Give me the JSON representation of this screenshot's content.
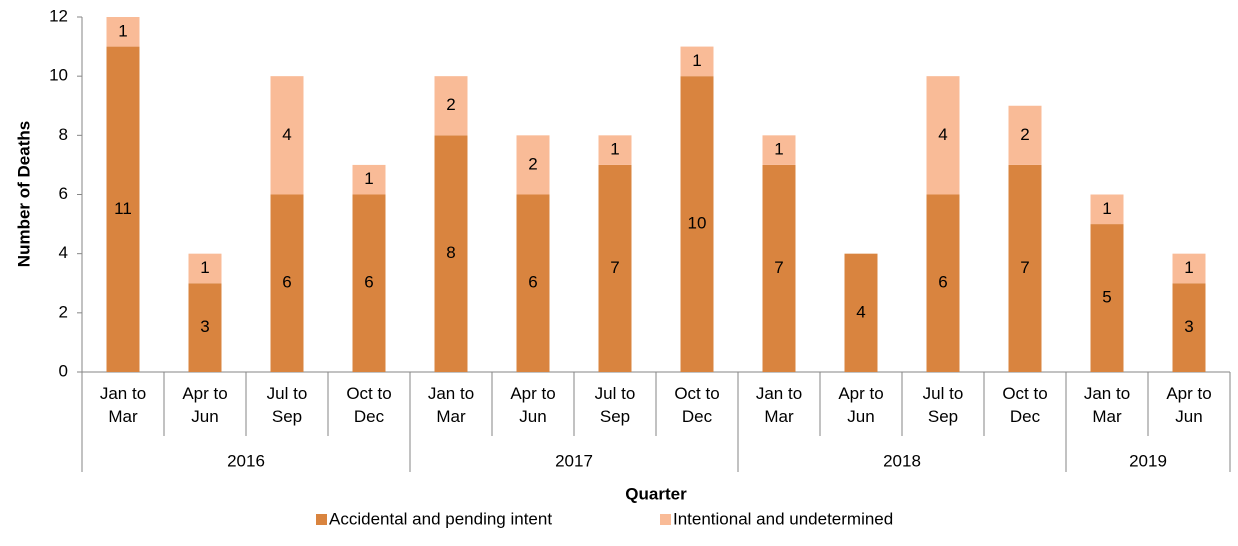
{
  "chart_data": {
    "type": "stacked_bar",
    "x_label": "Quarter",
    "y_label": "Number of Deaths",
    "categories": [
      "Jan to Mar",
      "Apr to Jun",
      "Jul to Sep",
      "Oct to Dec",
      "Jan to Mar",
      "Apr to Jun",
      "Jul to Sep",
      "Oct to Dec",
      "Jan to Mar",
      "Apr to Jun",
      "Jul to Sep",
      "Oct to Dec",
      "Jan to Mar",
      "Apr to Jun"
    ],
    "groups": [
      {
        "name": "2016",
        "span": 4
      },
      {
        "name": "2017",
        "span": 4
      },
      {
        "name": "2018",
        "span": 4
      },
      {
        "name": "2019",
        "span": 2
      }
    ],
    "series": [
      {
        "name": "Accidental and pending intent",
        "color": "#d9843f",
        "values": [
          11,
          3,
          6,
          6,
          8,
          6,
          7,
          10,
          7,
          4,
          6,
          7,
          5,
          3
        ]
      },
      {
        "name": "Intentional and undetermined",
        "color": "#f9bb97",
        "values": [
          1,
          1,
          4,
          1,
          2,
          2,
          1,
          1,
          1,
          null,
          4,
          2,
          1,
          1
        ]
      }
    ],
    "ylim": [
      0,
      12
    ],
    "yticks": [
      0,
      2,
      4,
      6,
      8,
      10,
      12
    ],
    "legend": "bottom"
  }
}
